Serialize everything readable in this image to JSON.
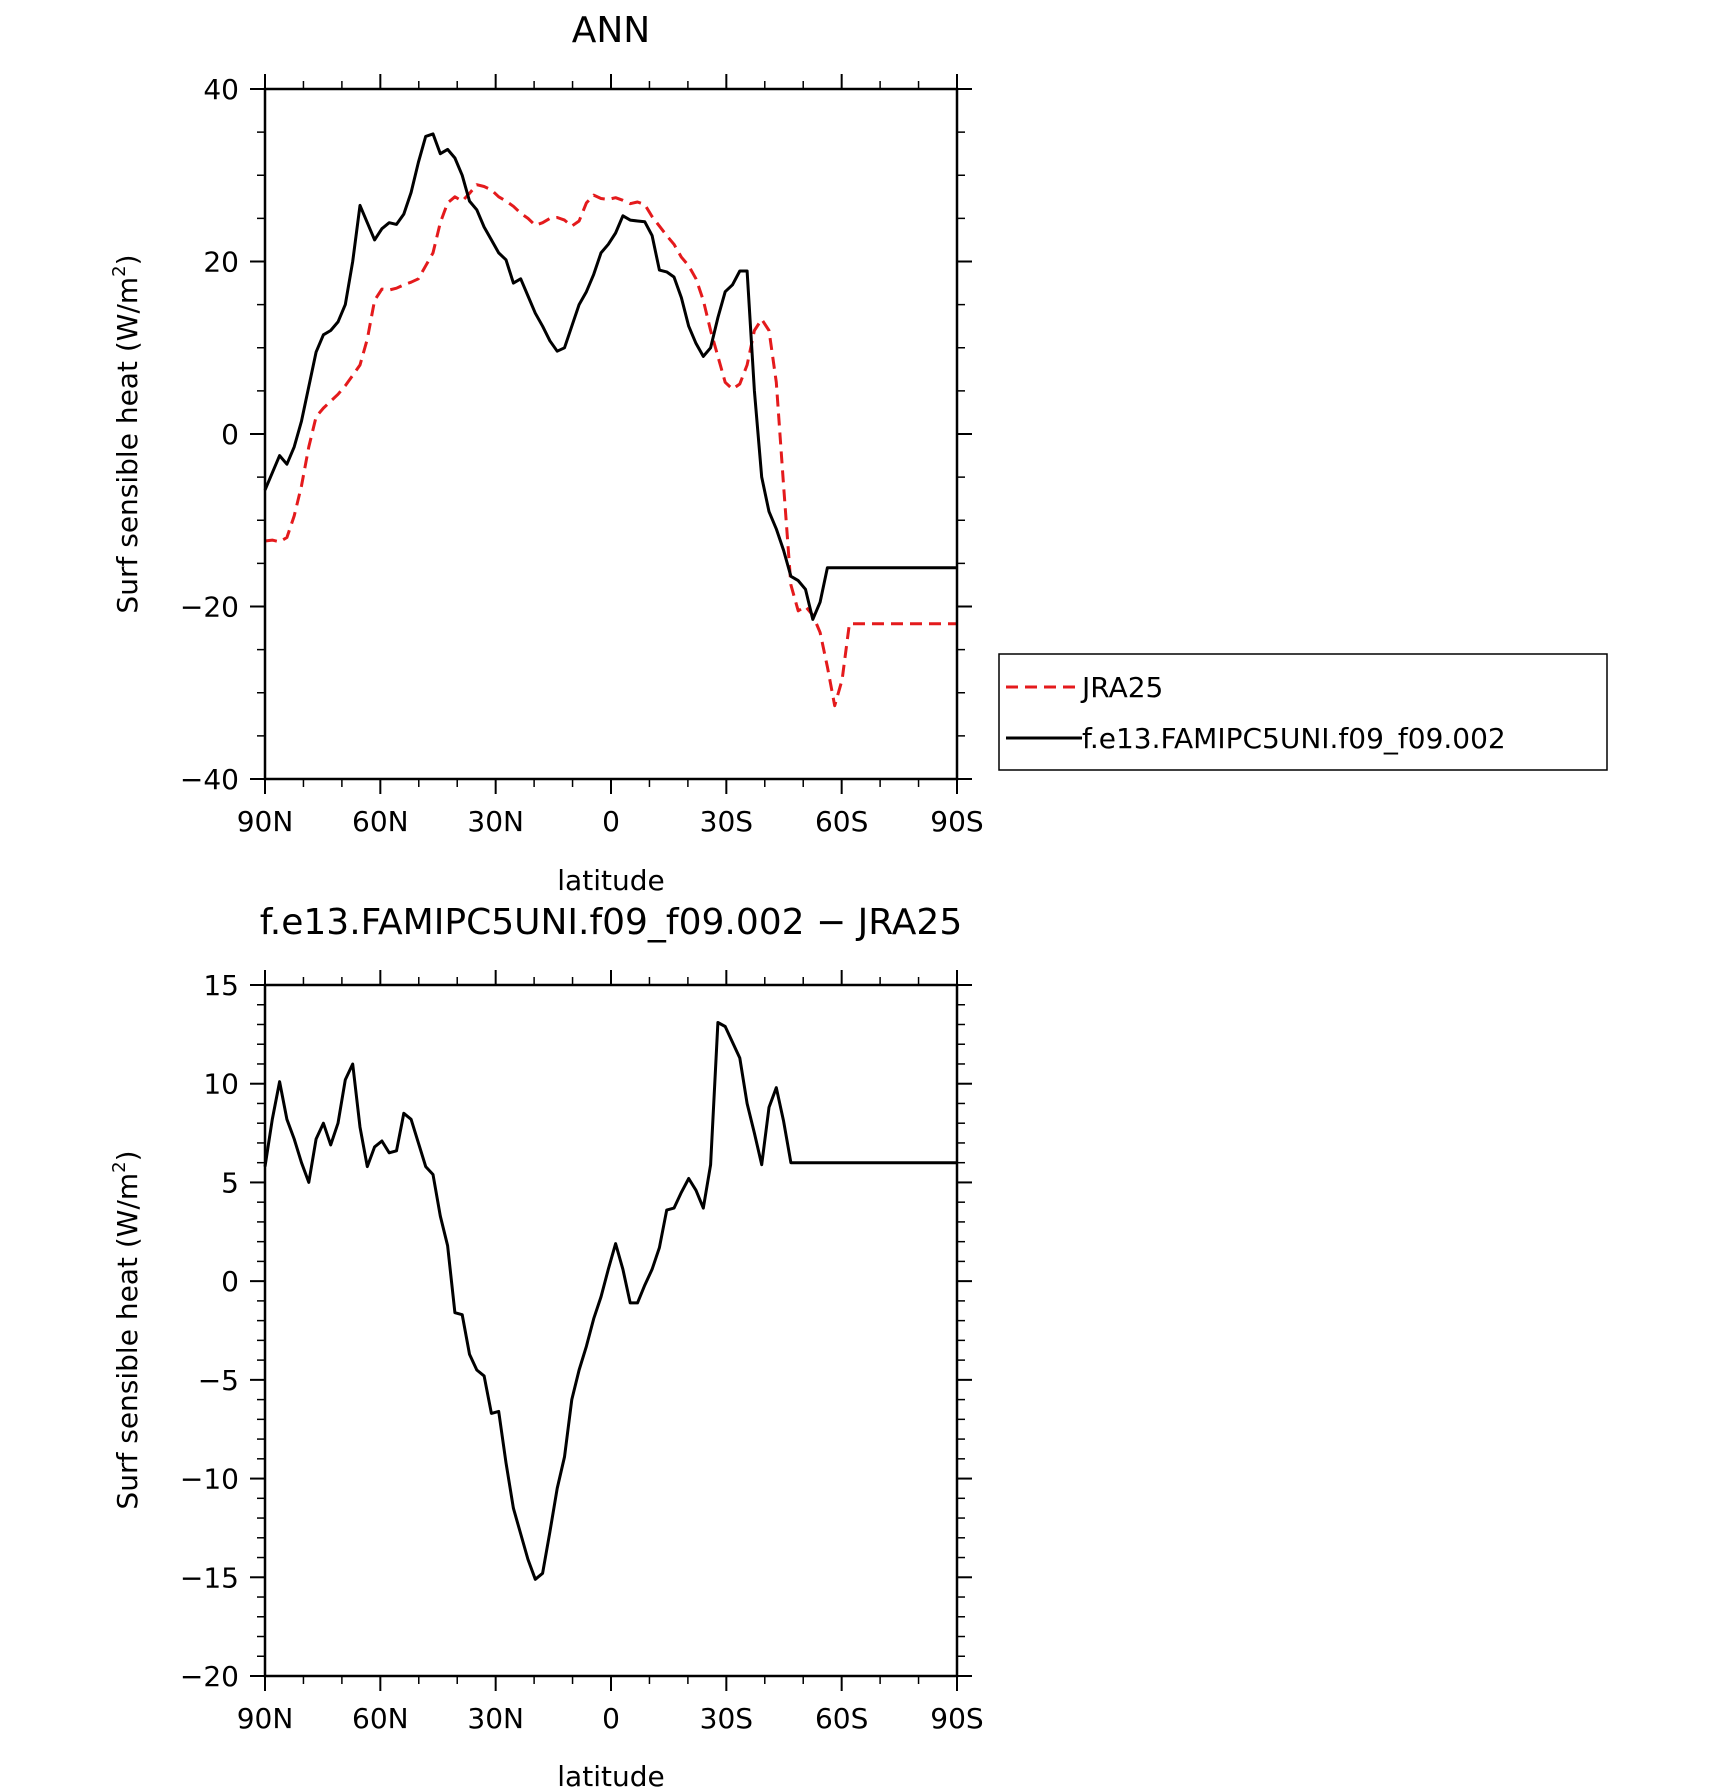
{
  "chart_data": [
    {
      "type": "line",
      "title": "ANN",
      "xlabel": "latitude",
      "ylabel": "Surf sensible heat (W/m",
      "ylabel_sup": "2",
      "ylabel_close": ")",
      "xlim": [
        90,
        -90
      ],
      "ylim": [
        -40,
        40
      ],
      "x_ticks": [
        90,
        60,
        30,
        0,
        -30,
        -60,
        -90
      ],
      "x_tick_labels": [
        "90N",
        "60N",
        "30N",
        "0",
        "30S",
        "60S",
        "90S"
      ],
      "y_ticks": [
        -40,
        -20,
        0,
        20,
        40
      ],
      "y_tick_labels": [
        "−40",
        "−20",
        "0",
        "20",
        "40"
      ],
      "legend": "outside-right",
      "x": [
        90,
        88.1,
        86.2,
        84.3,
        82.4,
        80.5,
        78.6,
        76.7,
        74.8,
        72.9,
        71,
        69.1,
        67.2,
        65.3,
        63.4,
        61.5,
        59.6,
        57.7,
        55.8,
        53.9,
        52,
        50.1,
        48.2,
        46.3,
        44.4,
        42.5,
        40.6,
        38.7,
        36.8,
        34.9,
        33,
        31.1,
        29.2,
        27.3,
        25.4,
        23.5,
        21.6,
        19.7,
        17.8,
        15.9,
        14,
        12.1,
        10.2,
        8.3,
        6.4,
        4.5,
        2.6,
        0.7,
        -1.2,
        -3.1,
        -5,
        -6.9,
        -8.8,
        -10.7,
        -12.6,
        -14.5,
        -16.4,
        -18.3,
        -20.2,
        -22.1,
        -24,
        -25.9,
        -27.8,
        -29.7,
        -31.6,
        -33.5,
        -35.4,
        -37.3,
        -39.2,
        -41.1,
        -43,
        -44.9,
        -46.8,
        -48.7,
        -50.6,
        -52.5,
        -54.4,
        -56.3,
        -58.2,
        -60.1,
        -62,
        -63.9,
        -65.8,
        -67.7,
        -69.6,
        -71.5,
        -73.4,
        -75.3,
        -77.2,
        -79.1,
        -81,
        -82.9,
        -84.8,
        -86.7,
        -88.6,
        -90
      ],
      "series": [
        {
          "name": "JRA25",
          "color": "#e41a1c",
          "dash": "dashed",
          "values": [
            -12.4,
            -12.3,
            -12.5,
            -12,
            -9.5,
            -6,
            -1.5,
            2,
            3,
            3.8,
            4.6,
            5.6,
            6.8,
            8,
            11,
            15.5,
            16.8,
            16.7,
            16.9,
            17.3,
            17.6,
            18,
            19.5,
            21,
            24.5,
            26.8,
            27.5,
            27,
            27.9,
            28.9,
            28.7,
            28.3,
            27.5,
            27,
            26.4,
            25.6,
            25,
            24.2,
            24.5,
            25,
            25.1,
            24.8,
            24.1,
            24.7,
            26.8,
            27.7,
            27.3,
            27.2,
            27.4,
            27.1,
            26.7,
            26.9,
            26.6,
            25.2,
            24.1,
            23,
            22,
            20.5,
            19.5,
            18,
            15.5,
            12,
            9,
            6,
            5.2,
            5.8,
            8,
            12,
            13.3,
            12,
            6,
            -6,
            -17.5,
            -20.5,
            -20,
            -21,
            -23,
            -27,
            -31.5,
            -28.5,
            -22,
            -22,
            -22,
            -22,
            -22,
            -22,
            -22,
            -22,
            -22,
            -22,
            -22,
            -22,
            -22,
            -22,
            -22,
            -22
          ]
        },
        {
          "name": "f.e13.FAMIPC5UNI.f09_f09.002",
          "color": "#000000",
          "dash": "solid",
          "values": [
            -6.5,
            -4.5,
            -2.5,
            -3.5,
            -1.5,
            1.5,
            5.5,
            9.5,
            11.5,
            12,
            13,
            15,
            20,
            26.5,
            24.5,
            22.5,
            23.8,
            24.5,
            24.3,
            25.5,
            28,
            31.5,
            34.5,
            34.8,
            32.5,
            33,
            32,
            30,
            27,
            26,
            24,
            22.5,
            21,
            20.2,
            17.5,
            18,
            16,
            14,
            12.5,
            10.8,
            9.6,
            10,
            12.5,
            15,
            16.5,
            18.5,
            21,
            22,
            23.3,
            25.3,
            24.8,
            24.7,
            24.6,
            23,
            19,
            18.8,
            18.2,
            15.8,
            12.5,
            10.5,
            9,
            10,
            13.5,
            16.5,
            17.3,
            18.9,
            18.9,
            5,
            -5,
            -9,
            -11,
            -13.5,
            -16.5,
            -17,
            -18,
            -21.5,
            -19.5,
            -15.5,
            -15.5,
            -15.5,
            -15.5,
            -15.5,
            -15.5,
            -15.5,
            -15.5,
            -15.5,
            -15.5,
            -15.5,
            -15.5,
            -15.5,
            -15.5,
            -15.5,
            -15.5,
            -15.5,
            -15.5,
            -15.5
          ]
        }
      ]
    },
    {
      "type": "line",
      "title": "f.e13.FAMIPC5UNI.f09_f09.002 − JRA25",
      "xlabel": "latitude",
      "ylabel": "Surf sensible heat (W/m",
      "ylabel_sup": "2",
      "ylabel_close": ")",
      "xlim": [
        90,
        -90
      ],
      "ylim": [
        -20,
        15
      ],
      "x_ticks": [
        90,
        60,
        30,
        0,
        -30,
        -60,
        -90
      ],
      "x_tick_labels": [
        "90N",
        "60N",
        "30N",
        "0",
        "30S",
        "60S",
        "90S"
      ],
      "y_ticks": [
        -20,
        -15,
        -10,
        -5,
        0,
        5,
        10,
        15
      ],
      "y_tick_labels": [
        "−20",
        "−15",
        "−10",
        "−5",
        "0",
        "5",
        "10",
        "15"
      ],
      "x": [
        90,
        88.1,
        86.2,
        84.3,
        82.4,
        80.5,
        78.6,
        76.7,
        74.8,
        72.9,
        71,
        69.1,
        67.2,
        65.3,
        63.4,
        61.5,
        59.6,
        57.7,
        55.8,
        53.9,
        52,
        50.1,
        48.2,
        46.3,
        44.4,
        42.5,
        40.6,
        38.7,
        36.8,
        34.9,
        33,
        31.1,
        29.2,
        27.3,
        25.4,
        23.5,
        21.6,
        19.7,
        17.8,
        15.9,
        14,
        12.1,
        10.2,
        8.3,
        6.4,
        4.5,
        2.6,
        0.7,
        -1.2,
        -3.1,
        -5,
        -6.9,
        -8.8,
        -10.7,
        -12.6,
        -14.5,
        -16.4,
        -18.3,
        -20.2,
        -22.1,
        -24,
        -25.9,
        -27.8,
        -29.7,
        -31.6,
        -33.5,
        -35.4,
        -37.3,
        -39.2,
        -41.1,
        -43,
        -44.9,
        -46.8,
        -48.7,
        -50.6,
        -52.5,
        -54.4,
        -56.3,
        -58.2,
        -60.1,
        -62,
        -63.9,
        -65.8,
        -67.7,
        -69.6,
        -71.5,
        -73.4,
        -75.3,
        -77.2,
        -79.1,
        -81,
        -82.9,
        -84.8,
        -86.7,
        -88.6,
        -90
      ],
      "series": [
        {
          "color": "#000000",
          "dash": "solid",
          "values": [
            5.8,
            8.2,
            10.1,
            8.2,
            7.2,
            6,
            5,
            7.2,
            8,
            6.9,
            8,
            10.2,
            11,
            7.8,
            5.8,
            6.8,
            7.1,
            6.5,
            6.6,
            8.5,
            8.2,
            7,
            5.8,
            5.4,
            3.3,
            1.8,
            -1.6,
            -1.7,
            -3.7,
            -4.5,
            -4.8,
            -6.7,
            -6.6,
            -9.2,
            -11.5,
            -12.8,
            -14.1,
            -15.1,
            -14.8,
            -12.7,
            -10.5,
            -8.9,
            -6,
            -4.5,
            -3.3,
            -1.9,
            -0.8,
            0.6,
            1.9,
            0.6,
            -1.1,
            -1.1,
            -0.2,
            0.6,
            1.7,
            3.6,
            3.7,
            4.5,
            5.2,
            4.6,
            3.7,
            5.9,
            13.1,
            12.9,
            12.1,
            11.3,
            9,
            7.5,
            5.9,
            8.8,
            9.8,
            8.1,
            6,
            6,
            6,
            6,
            6,
            6,
            6,
            6,
            6,
            6,
            6,
            6,
            6,
            6,
            6,
            6,
            6,
            6,
            6,
            6,
            6,
            6,
            6,
            6
          ]
        }
      ]
    }
  ]
}
